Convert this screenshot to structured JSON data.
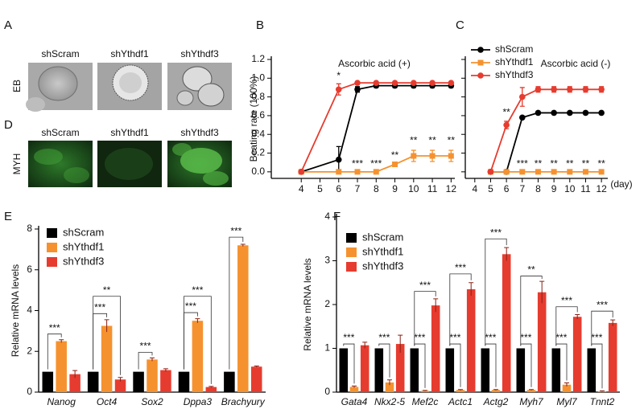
{
  "image_panels": [
    {
      "label": "A",
      "row_label": "EB",
      "columns": [
        "shScram",
        "shYthdf1",
        "shYthdf3"
      ]
    },
    {
      "label": "D",
      "row_label": "MYH",
      "columns": [
        "shScram",
        "shYthdf1",
        "shYthdf3"
      ]
    }
  ],
  "chart_data": [
    {
      "type": "line",
      "panel_label": "B",
      "title": "Ascorbic acid (+)",
      "ylabel": "Beating rate (100%)",
      "xlim": [
        2.4,
        12.2
      ],
      "xticks": [
        4,
        5,
        6,
        7,
        8,
        9,
        10,
        11,
        12
      ],
      "ylim": [
        -0.07,
        1.2
      ],
      "yticks": [
        {
          "value": 0,
          "label": "0.0"
        },
        {
          "value": 0.2,
          "label": "0.2"
        },
        {
          "value": 0.4,
          "label": "0.4"
        },
        {
          "value": 0.6,
          "label": "0.6"
        },
        {
          "value": 0.8,
          "label": "0.8"
        },
        {
          "value": 1,
          "label": "1.0"
        },
        {
          "value": 1.2,
          "label": "1.2"
        }
      ],
      "series": [
        {
          "name": "shScram",
          "color": "#000000",
          "marker": "circle",
          "x": [
            4,
            6,
            7,
            8,
            9,
            10,
            11,
            12
          ],
          "values": [
            0,
            0.13,
            0.88,
            0.92,
            0.92,
            0.92,
            0.92,
            0.92
          ],
          "errors": [
            null,
            0.14,
            0.03,
            0.02,
            0.02,
            0.02,
            0.02,
            0.02
          ]
        },
        {
          "name": "shYthdf1",
          "color": "#f5922f",
          "marker": "square",
          "x": [
            4,
            6,
            7,
            8,
            9,
            10,
            11,
            12
          ],
          "values": [
            0,
            0,
            0,
            0,
            0.08,
            0.17,
            0.17,
            0.17
          ],
          "errors": [
            null,
            null,
            null,
            null,
            null,
            0.06,
            0.06,
            0.06
          ]
        },
        {
          "name": "shYthdf3",
          "color": "#e63c2f",
          "marker": "circle",
          "x": [
            4,
            6,
            7,
            8,
            9,
            10,
            11,
            12
          ],
          "values": [
            0,
            0.88,
            0.95,
            0.95,
            0.95,
            0.95,
            0.95,
            0.95
          ],
          "errors": [
            null,
            0.06,
            null,
            null,
            null,
            null,
            null,
            null
          ]
        }
      ],
      "annotations": [
        {
          "x": 6,
          "y": 1.02,
          "text": "*"
        },
        {
          "x": 7,
          "y": 0.08,
          "text": "***"
        },
        {
          "x": 8,
          "y": 0.08,
          "text": "***"
        },
        {
          "x": 9,
          "y": 0.17,
          "text": "**"
        },
        {
          "x": 10,
          "y": 0.33,
          "text": "**"
        },
        {
          "x": 11,
          "y": 0.33,
          "text": "**"
        },
        {
          "x": 12,
          "y": 0.33,
          "text": "**"
        }
      ]
    },
    {
      "type": "line",
      "panel_label": "C",
      "title": "Ascorbic acid (-)",
      "xlabel": "(day)",
      "xlim": [
        3.4,
        12.4
      ],
      "xticks": [
        4,
        5,
        6,
        7,
        8,
        9,
        10,
        11,
        12
      ],
      "ylim": [
        -0.07,
        1.2
      ],
      "yticks": [
        0,
        0.2,
        0.4,
        0.6,
        0.8,
        1,
        1.2
      ],
      "ytick_labels": false,
      "legend": "upper left",
      "series": [
        {
          "name": "shScram",
          "color": "#000000",
          "marker": "circle",
          "x": [
            5,
            6,
            7,
            8,
            9,
            10,
            11,
            12
          ],
          "values": [
            0,
            0,
            0.58,
            0.63,
            0.63,
            0.63,
            0.63,
            0.63
          ],
          "errors": [
            null,
            null,
            null,
            null,
            null,
            null,
            null,
            null
          ]
        },
        {
          "name": "shYthdf1",
          "color": "#f5922f",
          "marker": "square",
          "x": [
            5,
            6,
            7,
            8,
            9,
            10,
            11,
            12
          ],
          "values": [
            0,
            0,
            0,
            0,
            0,
            0,
            0,
            0
          ],
          "errors": [
            null,
            null,
            null,
            null,
            null,
            null,
            null,
            null
          ]
        },
        {
          "name": "shYthdf3",
          "color": "#e63c2f",
          "marker": "circle",
          "x": [
            5,
            6,
            7,
            8,
            9,
            10,
            11,
            12
          ],
          "values": [
            0,
            0.5,
            0.8,
            0.88,
            0.88,
            0.88,
            0.88,
            0.88
          ],
          "errors": [
            null,
            0.04,
            0.1,
            0.03,
            0.03,
            0.03,
            0.03,
            0.03
          ]
        }
      ],
      "annotations": [
        {
          "x": 6,
          "y": 0.63,
          "text": "**"
        },
        {
          "x": 7,
          "y": 0.08,
          "text": "***"
        },
        {
          "x": 8,
          "y": 0.08,
          "text": "**"
        },
        {
          "x": 9,
          "y": 0.08,
          "text": "**"
        },
        {
          "x": 10,
          "y": 0.08,
          "text": "**"
        },
        {
          "x": 11,
          "y": 0.08,
          "text": "**"
        },
        {
          "x": 12,
          "y": 0.08,
          "text": "**"
        }
      ]
    },
    {
      "type": "bar",
      "panel_label": "E",
      "ylabel": "Relative mRNA levels",
      "categories": [
        "Nanog",
        "Oct4",
        "Sox2",
        "Dppa3",
        "Brachyury"
      ],
      "ylim": [
        0,
        8
      ],
      "yticks": [
        0,
        2,
        4,
        6,
        8
      ],
      "legend": "upper left",
      "series": [
        {
          "name": "shScram",
          "color": "#000000",
          "values": [
            1,
            1,
            1,
            1,
            1
          ]
        },
        {
          "name": "shYthdf1",
          "color": "#f5922f",
          "values": [
            2.5,
            3.25,
            1.6,
            3.5,
            7.2
          ],
          "errors": [
            0.07,
            0.3,
            0.08,
            0.1,
            0.05
          ]
        },
        {
          "name": "shYthdf3",
          "color": "#e63c2f",
          "values": [
            0.88,
            0.62,
            1.08,
            0.25,
            1.25
          ],
          "errors": [
            0.18,
            0.1,
            0.07,
            0.03,
            0.03
          ]
        }
      ],
      "brackets": [
        {
          "category": 0,
          "from": 0,
          "to": 1,
          "y": 2.85,
          "text": "***"
        },
        {
          "category": 1,
          "from": 0,
          "to": 1,
          "y": 3.85,
          "text": "***"
        },
        {
          "category": 1,
          "from": 0,
          "to": 2,
          "y": 4.7,
          "text": "**"
        },
        {
          "category": 2,
          "from": 0,
          "to": 1,
          "y": 1.95,
          "text": "***"
        },
        {
          "category": 3,
          "from": 0,
          "to": 1,
          "y": 3.9,
          "text": "***"
        },
        {
          "category": 3,
          "from": 0,
          "to": 2,
          "y": 4.7,
          "text": "***"
        },
        {
          "category": 4,
          "from": 0,
          "to": 1,
          "y": 7.6,
          "text": "***"
        }
      ]
    },
    {
      "type": "bar",
      "panel_label": "F",
      "ylabel": "Relative mRNA levels",
      "categories": [
        "Gata4",
        "Nkx2-5",
        "Mef2c",
        "Actc1",
        "Actg2",
        "Myh7",
        "Myl7",
        "Tnnt2"
      ],
      "ylim": [
        0,
        4
      ],
      "yticks": [
        0,
        1,
        2,
        3,
        4
      ],
      "legend": "upper left",
      "series": [
        {
          "name": "shScram",
          "color": "#000000",
          "values": [
            1,
            1,
            1,
            1,
            1,
            1,
            1,
            1
          ]
        },
        {
          "name": "shYthdf1",
          "color": "#f5922f",
          "values": [
            0.12,
            0.22,
            0.03,
            0.05,
            0.05,
            0.05,
            0.17,
            0.02
          ],
          "errors": [
            0.02,
            0.06,
            0.01,
            0.01,
            0.01,
            0.01,
            0.04,
            0.01
          ]
        },
        {
          "name": "shYthdf3",
          "color": "#e63c2f",
          "values": [
            1.07,
            1.1,
            1.98,
            2.35,
            3.15,
            2.28,
            1.72,
            1.58
          ],
          "errors": [
            0.07,
            0.2,
            0.15,
            0.15,
            0.15,
            0.25,
            0.05,
            0.07
          ]
        }
      ],
      "brackets": [
        {
          "category": 0,
          "from": 0,
          "to": 1,
          "y": 1.1,
          "text": "***"
        },
        {
          "category": 1,
          "from": 0,
          "to": 1,
          "y": 1.1,
          "text": "***"
        },
        {
          "category": 2,
          "from": 0,
          "to": 1,
          "y": 1.1,
          "text": "***"
        },
        {
          "category": 2,
          "from": 0,
          "to": 2,
          "y": 2.3,
          "text": "***"
        },
        {
          "category": 3,
          "from": 0,
          "to": 1,
          "y": 1.1,
          "text": "***"
        },
        {
          "category": 3,
          "from": 0,
          "to": 2,
          "y": 2.7,
          "text": "***"
        },
        {
          "category": 4,
          "from": 0,
          "to": 1,
          "y": 1.1,
          "text": "***"
        },
        {
          "category": 4,
          "from": 0,
          "to": 2,
          "y": 3.5,
          "text": "***"
        },
        {
          "category": 5,
          "from": 0,
          "to": 1,
          "y": 1.1,
          "text": "***"
        },
        {
          "category": 5,
          "from": 0,
          "to": 2,
          "y": 2.65,
          "text": "**"
        },
        {
          "category": 6,
          "from": 0,
          "to": 1,
          "y": 1.1,
          "text": "***"
        },
        {
          "category": 6,
          "from": 0,
          "to": 2,
          "y": 1.95,
          "text": "***"
        },
        {
          "category": 7,
          "from": 0,
          "to": 1,
          "y": 1.1,
          "text": "***"
        },
        {
          "category": 7,
          "from": 0,
          "to": 2,
          "y": 1.85,
          "text": "***"
        }
      ]
    }
  ]
}
